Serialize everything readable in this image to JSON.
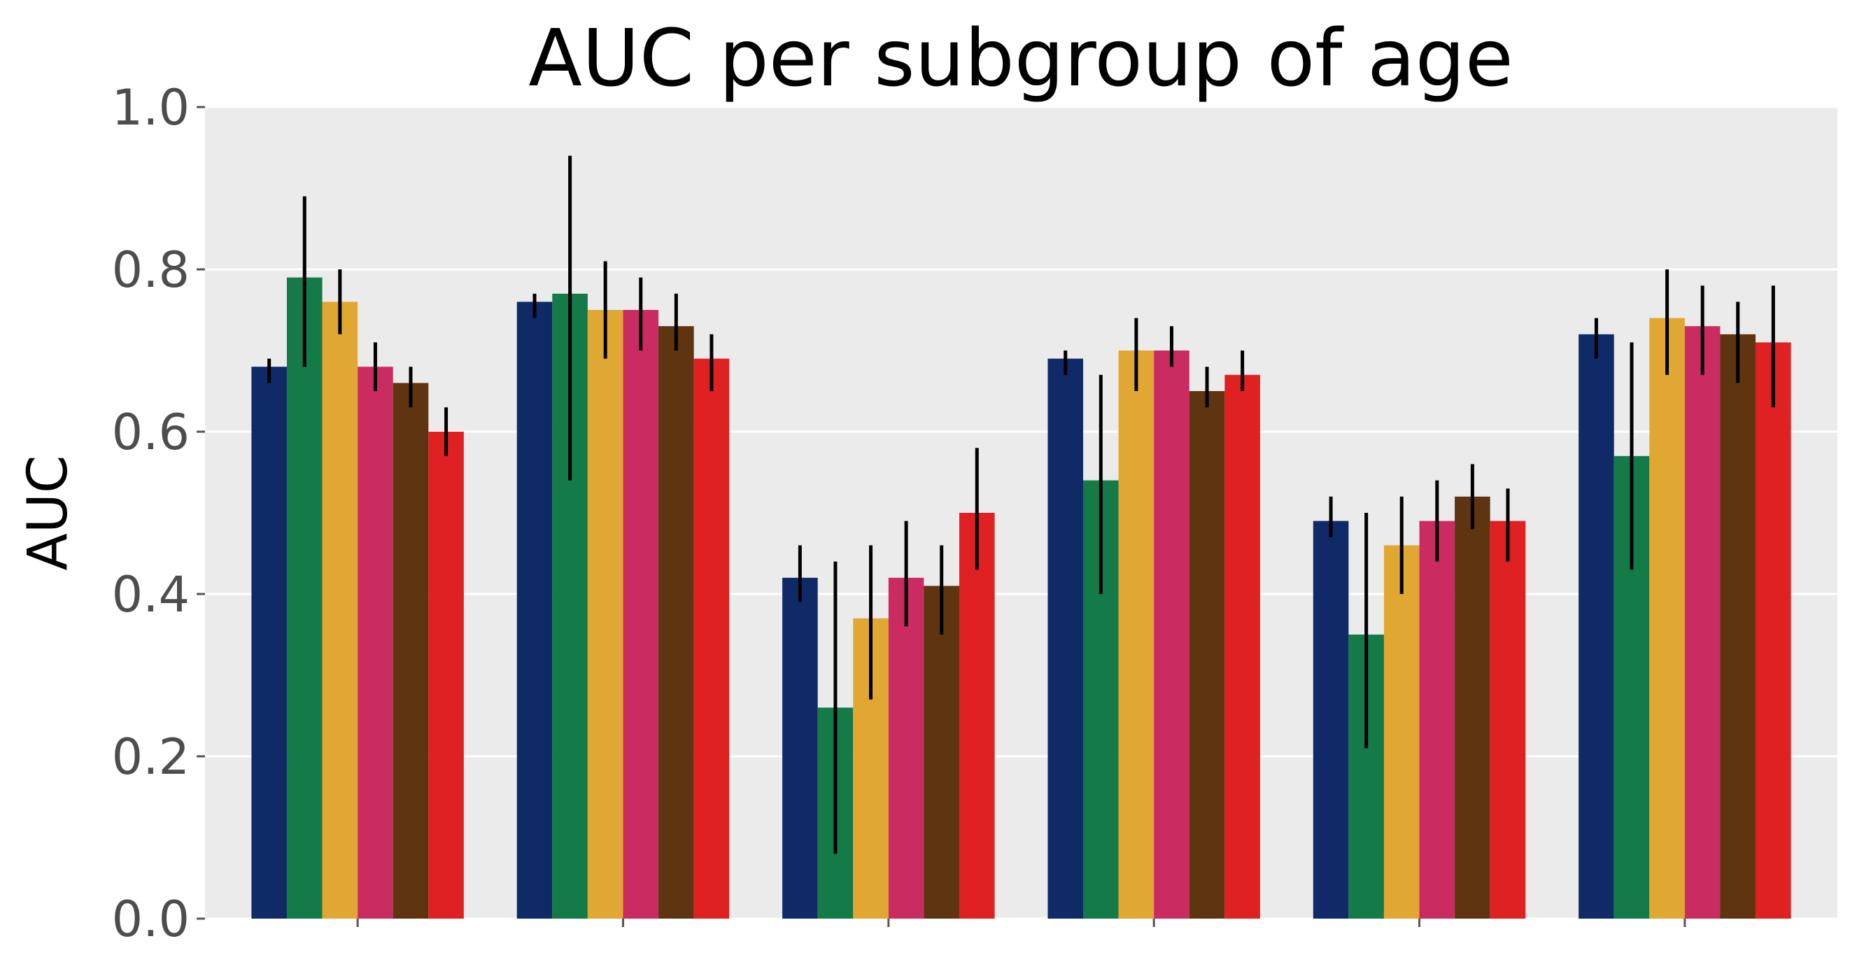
{
  "chart_data": {
    "type": "bar",
    "title": "AUC per subgroup of age",
    "xlabel": "",
    "ylabel": "AUC",
    "ylim": [
      0,
      1.0
    ],
    "yticks": [
      "0.0",
      "0.2",
      "0.4",
      "0.6",
      "0.8",
      "1.0"
    ],
    "grid": true,
    "legend": null,
    "categories": [
      "",
      "",
      "",
      "",
      "",
      ""
    ],
    "series": [
      {
        "color": "#0f2a66",
        "values": [
          0.68,
          0.76,
          0.42,
          0.69,
          0.49,
          0.72
        ],
        "err_low": [
          0.66,
          0.74,
          0.39,
          0.67,
          0.47,
          0.69
        ],
        "err_high": [
          0.69,
          0.77,
          0.46,
          0.7,
          0.52,
          0.74
        ]
      },
      {
        "color": "#137a48",
        "values": [
          0.79,
          0.77,
          0.26,
          0.54,
          0.35,
          0.57
        ],
        "err_low": [
          0.68,
          0.54,
          0.08,
          0.4,
          0.21,
          0.43
        ],
        "err_high": [
          0.89,
          0.94,
          0.44,
          0.67,
          0.5,
          0.71
        ]
      },
      {
        "color": "#e0a832",
        "values": [
          0.76,
          0.75,
          0.37,
          0.7,
          0.46,
          0.74
        ],
        "err_low": [
          0.72,
          0.69,
          0.27,
          0.65,
          0.4,
          0.67
        ],
        "err_high": [
          0.8,
          0.81,
          0.46,
          0.74,
          0.52,
          0.8
        ]
      },
      {
        "color": "#ca2c62",
        "values": [
          0.68,
          0.75,
          0.42,
          0.7,
          0.49,
          0.73
        ],
        "err_low": [
          0.65,
          0.7,
          0.36,
          0.68,
          0.44,
          0.67
        ],
        "err_high": [
          0.71,
          0.79,
          0.49,
          0.73,
          0.54,
          0.78
        ]
      },
      {
        "color": "#5e3411",
        "values": [
          0.66,
          0.73,
          0.41,
          0.65,
          0.52,
          0.72
        ],
        "err_low": [
          0.63,
          0.7,
          0.35,
          0.63,
          0.48,
          0.66
        ],
        "err_high": [
          0.68,
          0.77,
          0.46,
          0.68,
          0.56,
          0.76
        ]
      },
      {
        "color": "#df2121",
        "values": [
          0.6,
          0.69,
          0.5,
          0.67,
          0.49,
          0.71
        ],
        "err_low": [
          0.57,
          0.65,
          0.43,
          0.65,
          0.44,
          0.63
        ],
        "err_high": [
          0.63,
          0.72,
          0.58,
          0.7,
          0.53,
          0.78
        ]
      }
    ]
  }
}
